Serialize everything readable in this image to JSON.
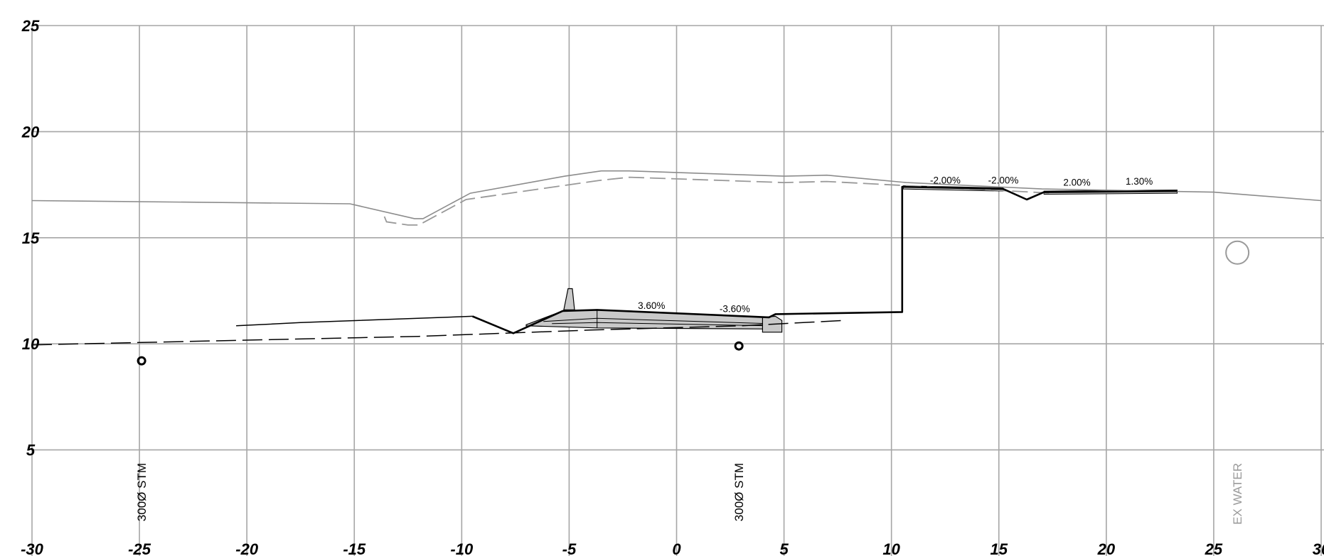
{
  "chart_data": {
    "type": "cross-section",
    "xlim": [
      -30,
      30
    ],
    "ylim": [
      0,
      25
    ],
    "grid": true,
    "x_ticks": [
      {
        "value": -30,
        "label": "-30"
      },
      {
        "value": -25,
        "label": "-25"
      },
      {
        "value": -20,
        "label": "-20"
      },
      {
        "value": -15,
        "label": "-15"
      },
      {
        "value": -10,
        "label": "-10"
      },
      {
        "value": -5,
        "label": "-5"
      },
      {
        "value": 0,
        "label": "0"
      },
      {
        "value": 5,
        "label": "5"
      },
      {
        "value": 10,
        "label": "10"
      },
      {
        "value": 15,
        "label": "15"
      },
      {
        "value": 20,
        "label": "20"
      },
      {
        "value": 25,
        "label": "25"
      },
      {
        "value": 30,
        "label": "30"
      }
    ],
    "y_ticks": [
      {
        "value": 5,
        "label": "5"
      },
      {
        "value": 10,
        "label": "10"
      },
      {
        "value": 15,
        "label": "15"
      },
      {
        "value": 20,
        "label": "20"
      },
      {
        "value": 25,
        "label": "25"
      }
    ],
    "series": [
      {
        "style": "upper-existing-ground",
        "points": [
          [
            -30,
            16.75
          ],
          [
            -15.2,
            16.6
          ],
          [
            -12.2,
            15.9
          ],
          [
            -11.8,
            15.9
          ],
          [
            -9.6,
            17.1
          ],
          [
            -5.2,
            17.9
          ],
          [
            -3.5,
            18.15
          ],
          [
            -2.2,
            18.15
          ],
          [
            5,
            17.9
          ],
          [
            7,
            17.95
          ],
          [
            10.7,
            17.6
          ],
          [
            17,
            17.3
          ],
          [
            25,
            17.15
          ],
          [
            30,
            16.75
          ]
        ]
      },
      {
        "style": "upper-existing-dashed",
        "points": [
          [
            -13.6,
            16.0
          ],
          [
            -13.5,
            15.75
          ],
          [
            -12.5,
            15.6
          ],
          [
            -12.0,
            15.6
          ],
          [
            -9.8,
            16.8
          ],
          [
            -3.6,
            17.7
          ],
          [
            -2.2,
            17.85
          ],
          [
            5,
            17.6
          ],
          [
            7,
            17.65
          ],
          [
            17.5,
            17.1
          ]
        ]
      },
      {
        "style": "lower-existing-ground",
        "points": [
          [
            -20.5,
            10.85
          ],
          [
            -17.5,
            11.0
          ],
          [
            -9.5,
            11.3
          ]
        ]
      },
      {
        "style": "lower-existing-dashed",
        "points": [
          [
            -30,
            9.95
          ],
          [
            -12,
            10.35
          ],
          [
            -4,
            10.65
          ],
          [
            3,
            10.85
          ],
          [
            7.8,
            11.1
          ]
        ]
      },
      {
        "style": "proposed-grade",
        "points": [
          [
            -9.5,
            11.3
          ],
          [
            -7.6,
            10.5
          ],
          [
            -5.3,
            11.55
          ],
          [
            -3.7,
            11.6
          ],
          [
            4.3,
            11.25
          ],
          [
            4.6,
            11.4
          ],
          [
            10.5,
            11.5
          ],
          [
            10.5,
            17.4
          ],
          [
            15.2,
            17.3
          ],
          [
            16.3,
            16.8
          ],
          [
            17.1,
            17.15
          ],
          [
            23.3,
            17.2
          ]
        ]
      }
    ],
    "utilities": [
      {
        "label": "300Ø STM",
        "x": -24.9,
        "y": 9.2,
        "size": "small"
      },
      {
        "label": "300Ø STM",
        "x": 2.9,
        "y": 9.9,
        "size": "small"
      },
      {
        "label": "EX WATER",
        "x": 26.1,
        "y": 14.3,
        "size": "large"
      }
    ],
    "slopes": [
      {
        "text": "3.60%",
        "x": -1.8,
        "y": 11.65
      },
      {
        "text": "-3.60%",
        "x": 2.0,
        "y": 11.5
      },
      {
        "text": "-2.00%",
        "x": 11.8,
        "y": 17.55
      },
      {
        "text": "-2.00%",
        "x": 14.5,
        "y": 17.55
      },
      {
        "text": "2.00%",
        "x": 18.0,
        "y": 17.45
      },
      {
        "text": "1.30%",
        "x": 20.9,
        "y": 17.5
      }
    ]
  }
}
